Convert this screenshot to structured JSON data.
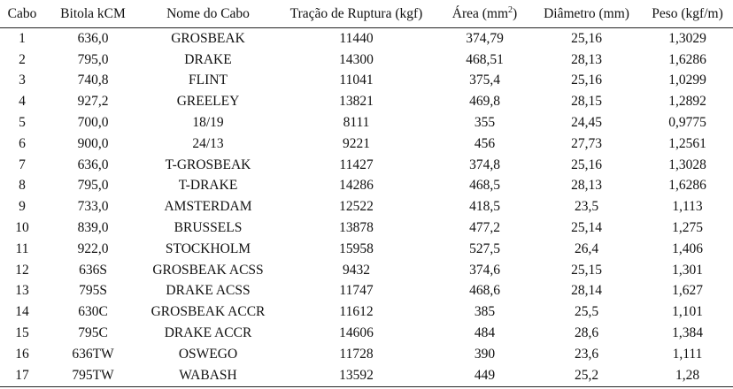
{
  "table": {
    "headers": [
      "Cabo",
      "Bitola kCM",
      "Nome do Cabo",
      "Tração de Ruptura (kgf)",
      "Área (mm",
      "Diâmetro (mm)",
      "Peso (kgf/m)"
    ],
    "area_superscript": "2",
    "area_suffix": ")",
    "rows": [
      [
        "1",
        "636,0",
        "GROSBEAK",
        "11440",
        "374,79",
        "25,16",
        "1,3029"
      ],
      [
        "2",
        "795,0",
        "DRAKE",
        "14300",
        "468,51",
        "28,13",
        "1,6286"
      ],
      [
        "3",
        "740,8",
        "FLINT",
        "11041",
        "375,4",
        "25,16",
        "1,0299"
      ],
      [
        "4",
        "927,2",
        "GREELEY",
        "13821",
        "469,8",
        "28,15",
        "1,2892"
      ],
      [
        "5",
        "700,0",
        "18/19",
        "8111",
        "355",
        "24,45",
        "0,9775"
      ],
      [
        "6",
        "900,0",
        "24/13",
        "9221",
        "456",
        "27,73",
        "1,2561"
      ],
      [
        "7",
        "636,0",
        "T-GROSBEAK",
        "11427",
        "374,8",
        "25,16",
        "1,3028"
      ],
      [
        "8",
        "795,0",
        "T-DRAKE",
        "14286",
        "468,5",
        "28,13",
        "1,6286"
      ],
      [
        "9",
        "733,0",
        "AMSTERDAM",
        "12522",
        "418,5",
        "23,5",
        "1,113"
      ],
      [
        "10",
        "839,0",
        "BRUSSELS",
        "13878",
        "477,2",
        "25,14",
        "1,275"
      ],
      [
        "11",
        "922,0",
        "STOCKHOLM",
        "15958",
        "527,5",
        "26,4",
        "1,406"
      ],
      [
        "12",
        "636S",
        "GROSBEAK ACSS",
        "9432",
        "374,6",
        "25,15",
        "1,301"
      ],
      [
        "13",
        "795S",
        "DRAKE ACSS",
        "11747",
        "468,6",
        "28,14",
        "1,627"
      ],
      [
        "14",
        "630C",
        "GROSBEAK ACCR",
        "11612",
        "385",
        "25,5",
        "1,101"
      ],
      [
        "15",
        "795C",
        "DRAKE ACCR",
        "14606",
        "484",
        "28,6",
        "1,384"
      ],
      [
        "16",
        "636TW",
        "OSWEGO",
        "11728",
        "390",
        "23,6",
        "1,111"
      ],
      [
        "17",
        "795TW",
        "WABASH",
        "13592",
        "449",
        "25,2",
        "1,28"
      ]
    ]
  }
}
